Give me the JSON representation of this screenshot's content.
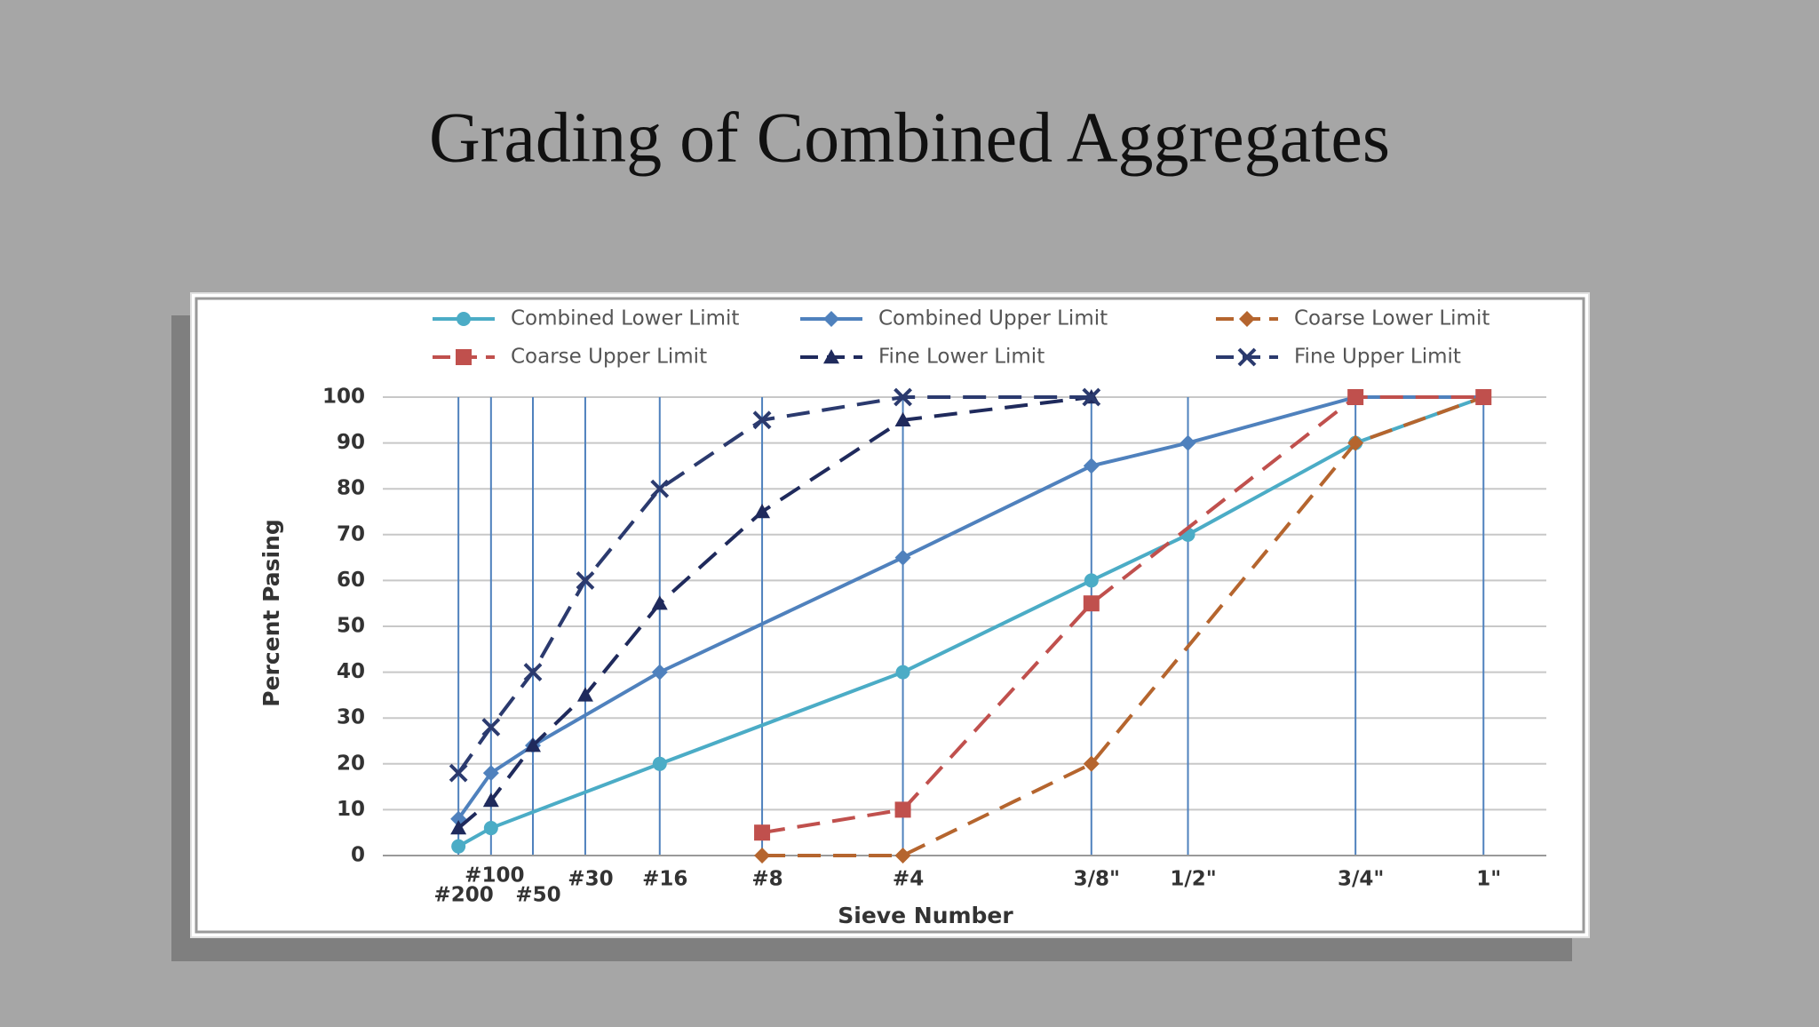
{
  "chart_data": {
    "type": "line",
    "title": "Grading of Combined Aggregates",
    "x_label": "Sieve Number",
    "y_label": "Percent Pasing",
    "categories": [
      "#200",
      "#100",
      "#50",
      "#30",
      "#16",
      "#8",
      "#4",
      "3/8\"",
      "1/2\"",
      "3/4\"",
      "1\""
    ],
    "ylim": [
      0,
      100
    ],
    "yticks": [
      0,
      10,
      20,
      30,
      40,
      50,
      60,
      70,
      80,
      90,
      100
    ],
    "grid": true,
    "legend": "top",
    "series": [
      {
        "name": "Combined Lower Limit",
        "color": "#4bacc6",
        "line_style": "solid",
        "marker": "circle",
        "x": [
          "#200",
          "#100",
          "#16",
          "#4",
          "3/8\"",
          "1/2\"",
          "3/4\"",
          "1\""
        ],
        "values": [
          2,
          6,
          20,
          40,
          60,
          70,
          90,
          100
        ]
      },
      {
        "name": "Combined Upper Limit",
        "color": "#4f81bd",
        "line_style": "solid",
        "marker": "diamond",
        "x": [
          "#200",
          "#100",
          "#50",
          "#16",
          "#4",
          "3/8\"",
          "1/2\"",
          "3/4\"",
          "1\""
        ],
        "values": [
          8,
          18,
          24,
          40,
          65,
          85,
          90,
          100,
          100
        ]
      },
      {
        "name": "Coarse Lower Limit",
        "color": "#b5652e",
        "line_style": "dashed",
        "marker": "diamond",
        "x": [
          "#8",
          "#4",
          "3/8\"",
          "3/4\"",
          "1\""
        ],
        "values": [
          0,
          0,
          20,
          90,
          100
        ]
      },
      {
        "name": "Coarse Upper Limit",
        "color": "#c0504d",
        "line_style": "dashed",
        "marker": "square",
        "x": [
          "#8",
          "#4",
          "3/8\"",
          "3/4\"",
          "1\""
        ],
        "values": [
          5,
          10,
          55,
          100,
          100
        ]
      },
      {
        "name": "Fine Lower Limit",
        "color": "#1f2a5c",
        "line_style": "dashed",
        "marker": "triangle",
        "x": [
          "#200",
          "#100",
          "#50",
          "#30",
          "#16",
          "#8",
          "#4",
          "3/8\""
        ],
        "values": [
          6,
          12,
          24,
          35,
          55,
          75,
          95,
          100
        ]
      },
      {
        "name": "Fine Upper Limit",
        "color": "#2b3a6e",
        "line_style": "dashed",
        "marker": "x",
        "x": [
          "#200",
          "#100",
          "#50",
          "#30",
          "#16",
          "#8",
          "#4",
          "3/8\""
        ],
        "values": [
          18,
          28,
          40,
          60,
          80,
          95,
          100,
          100
        ]
      }
    ]
  }
}
